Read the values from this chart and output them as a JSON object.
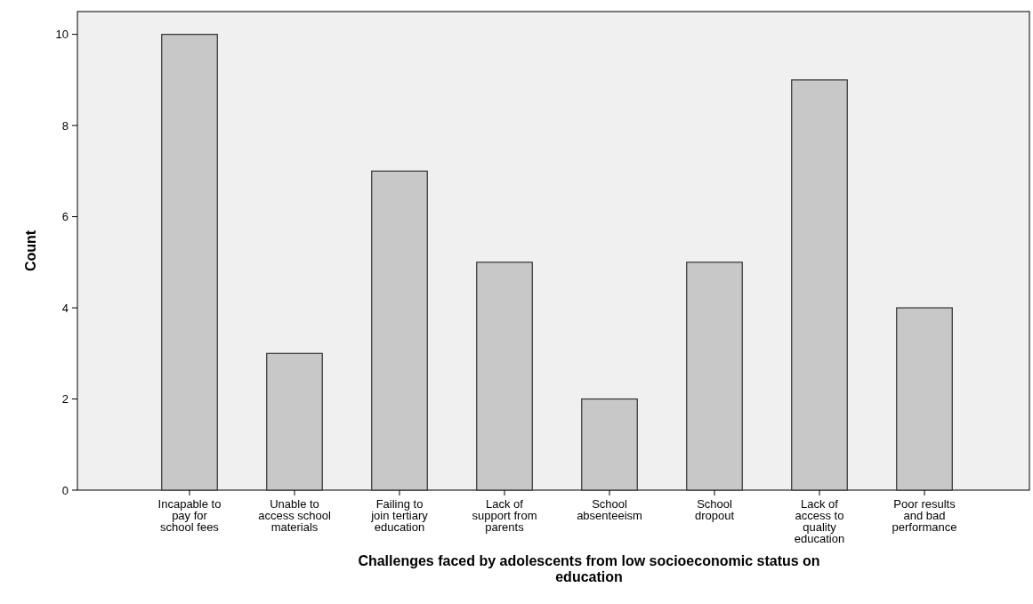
{
  "chart_data": {
    "type": "bar",
    "xlabel": "Challenges faced by adolescents from low socioeconomic status on education",
    "ylabel": "Count",
    "categories": [
      "Incapable to pay for school fees",
      "Unable to access school materials",
      "Failing to join tertiary education",
      "Lack of support from parents",
      "School absenteeism",
      "School dropout",
      "Lack of access to quality education",
      "Poor results and bad performance"
    ],
    "values": [
      10,
      3,
      7,
      5,
      2,
      5,
      9,
      4
    ],
    "color": "#c8c8c8",
    "ylim": [
      0,
      10.5
    ],
    "yticks": [
      0,
      2,
      4,
      6,
      8,
      10
    ]
  }
}
